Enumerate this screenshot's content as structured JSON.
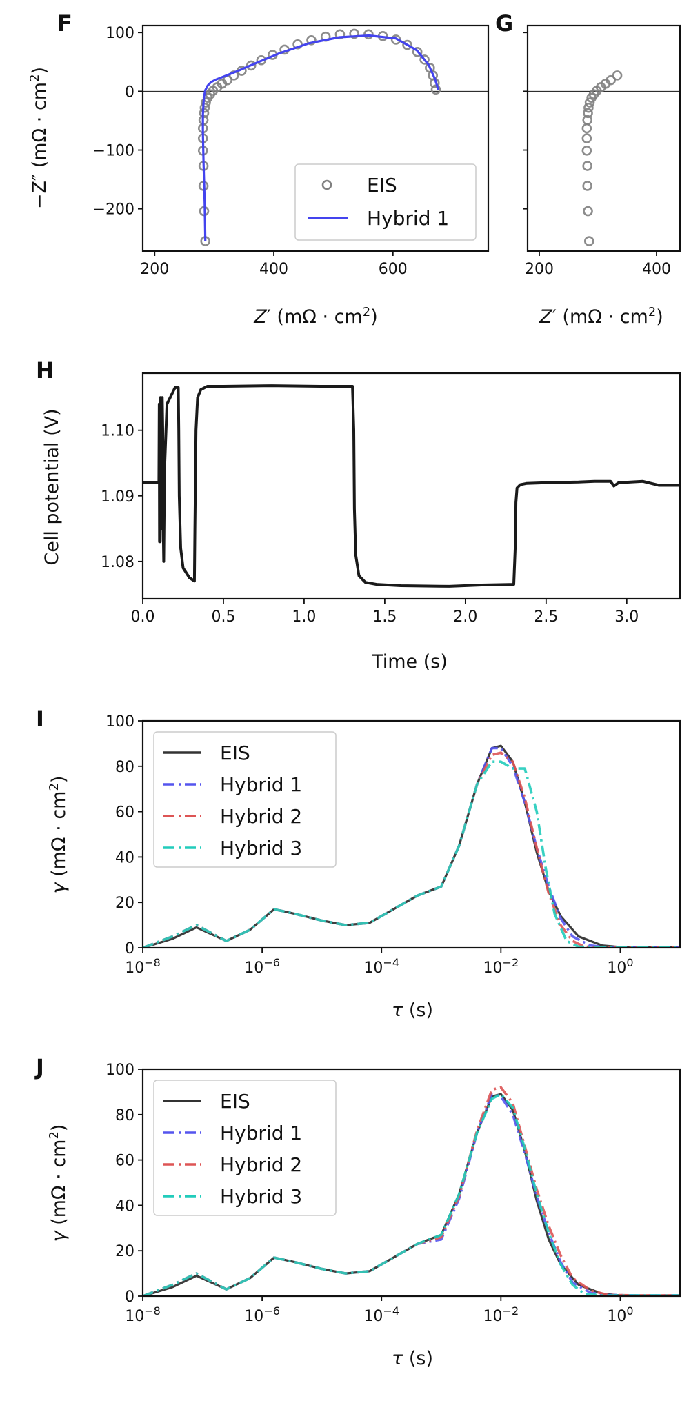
{
  "chart_data": [
    {
      "panel": "F",
      "type": "scatter",
      "xlabel_main": "Z",
      "xlabel_prime": "′",
      "xlabel_unit": " (mΩ · cm",
      "xlabel_sup": "2",
      "xlabel_close": ")",
      "ylabel_main": "−Z",
      "ylabel_prime": "″",
      "ylabel_unit": " (mΩ · cm",
      "ylabel_sup": "2",
      "ylabel_close": ")",
      "xlim": [
        180,
        760
      ],
      "ylim": [
        -272,
        112
      ],
      "xticks": [
        200,
        400,
        600
      ],
      "yticks": [
        100,
        0,
        -100,
        -200
      ],
      "legend": {
        "placement": "lower-right",
        "entries": [
          "EIS",
          "Hybrid 1"
        ]
      },
      "series": [
        {
          "name": "EIS",
          "marker": "open-circle",
          "color": "#808080",
          "x": [
            285,
            283,
            282,
            282,
            281,
            281,
            281,
            282,
            283,
            284,
            286,
            289,
            293,
            298,
            305,
            313,
            322,
            333,
            346,
            362,
            379,
            398,
            418,
            440,
            463,
            487,
            511,
            535,
            559,
            583,
            605,
            624,
            641,
            653,
            662,
            667,
            670,
            672
          ],
          "y": [
            -255,
            -204,
            -161,
            -127,
            -101,
            -80,
            -63,
            -49,
            -37,
            -28,
            -19,
            -11,
            -5,
            1,
            7,
            13,
            19,
            27,
            35,
            44,
            53,
            62,
            71,
            80,
            87,
            93,
            97,
            98,
            97,
            94,
            88,
            79,
            67,
            54,
            40,
            27,
            14,
            3
          ]
        },
        {
          "name": "Hybrid 1",
          "marker": "line",
          "color": "#4444ee",
          "x": [
            285,
            284,
            282,
            281,
            281,
            282,
            283,
            285,
            289,
            295,
            303,
            318,
            340,
            370,
            410,
            460,
            510,
            560,
            605,
            640,
            660,
            670,
            674,
            676
          ],
          "y": [
            -255,
            -190,
            -120,
            -70,
            -40,
            -20,
            -8,
            2,
            10,
            16,
            20,
            26,
            35,
            48,
            65,
            82,
            92,
            95,
            90,
            70,
            45,
            22,
            10,
            2
          ]
        }
      ]
    },
    {
      "panel": "G",
      "type": "scatter",
      "xlabel_main": "Z",
      "xlabel_prime": "′",
      "xlabel_unit": " (mΩ · cm",
      "xlabel_sup": "2",
      "xlabel_close": ")",
      "xlim": [
        180,
        440
      ],
      "ylim": [
        -272,
        112
      ],
      "xticks": [
        200,
        400
      ],
      "series": [
        {
          "name": "EIS",
          "marker": "open-circle",
          "color": "#808080",
          "x": [
            285,
            283,
            282,
            282,
            281,
            281,
            281,
            282,
            283,
            284,
            286,
            289,
            293,
            298,
            305,
            313,
            322,
            333
          ],
          "y": [
            -255,
            -204,
            -161,
            -127,
            -101,
            -80,
            -63,
            -49,
            -37,
            -28,
            -19,
            -11,
            -5,
            1,
            7,
            13,
            19,
            27
          ]
        }
      ]
    },
    {
      "panel": "H",
      "type": "line",
      "xlabel": "Time (s)",
      "ylabel": "Cell potential (V)",
      "xlim": [
        0.0,
        3.33
      ],
      "ylim": [
        1.0743,
        1.1087
      ],
      "xticks": [
        0.0,
        0.5,
        1.0,
        1.5,
        2.0,
        2.5,
        3.0
      ],
      "xticklabels": [
        "0.0",
        "0.5",
        "1.0",
        "1.5",
        "2.0",
        "2.5",
        "3.0"
      ],
      "yticks": [
        1.08,
        1.09,
        1.1
      ],
      "yticklabels": [
        "1.08",
        "1.09",
        "1.10"
      ],
      "series": [
        {
          "name": "Cell potential",
          "color": "#1a1a1a",
          "x": [
            0.0,
            0.095,
            0.1,
            0.102,
            0.104,
            0.108,
            0.108,
            0.11,
            0.112,
            0.114,
            0.116,
            0.119,
            0.121,
            0.124,
            0.127,
            0.13,
            0.135,
            0.15,
            0.2,
            0.22,
            0.223,
            0.226,
            0.235,
            0.25,
            0.29,
            0.32,
            0.323,
            0.33,
            0.34,
            0.36,
            0.4,
            0.5,
            0.8,
            1.1,
            1.3,
            1.308,
            1.312,
            1.32,
            1.34,
            1.38,
            1.45,
            1.6,
            1.9,
            2.1,
            2.3,
            2.31,
            2.313,
            2.32,
            2.34,
            2.38,
            2.5,
            2.7,
            2.8,
            2.9,
            2.92,
            2.95,
            3.1,
            3.2,
            3.33
          ],
          "y": [
            1.092,
            1.092,
            1.092,
            1.104,
            1.083,
            1.083,
            1.103,
            1.105,
            1.104,
            1.087,
            1.085,
            1.104,
            1.105,
            1.1,
            1.085,
            1.08,
            1.094,
            1.104,
            1.1065,
            1.1065,
            1.1,
            1.09,
            1.082,
            1.079,
            1.0775,
            1.077,
            1.085,
            1.1,
            1.105,
            1.1062,
            1.1067,
            1.1067,
            1.1068,
            1.1067,
            1.1067,
            1.1,
            1.088,
            1.081,
            1.0778,
            1.0768,
            1.0765,
            1.0763,
            1.0762,
            1.0764,
            1.0765,
            1.083,
            1.089,
            1.0912,
            1.0917,
            1.0919,
            1.092,
            1.0921,
            1.0922,
            1.0922,
            1.0915,
            1.092,
            1.0922,
            1.0916,
            1.0916
          ]
        }
      ]
    },
    {
      "panel": "I",
      "type": "line",
      "xlabel_sym": "τ",
      "xlabel_unit": " (s)",
      "ylabel_sym": "γ",
      "ylabel_unit": " (mΩ · cm",
      "ylabel_sup": "2",
      "ylabel_close": ")",
      "xscale": "log",
      "xlim_log10": [
        -8,
        1
      ],
      "ylim": [
        0,
        100
      ],
      "xtick_exponents": [
        "−8",
        "−6",
        "−4",
        "−2",
        "0"
      ],
      "xtick_log10": [
        -8,
        -6,
        -4,
        -2,
        0
      ],
      "yticks": [
        0,
        20,
        40,
        60,
        80,
        100
      ],
      "legend": {
        "placement": "upper-left",
        "entries": [
          "EIS",
          "Hybrid 1",
          "Hybrid 2",
          "Hybrid 3"
        ]
      },
      "series": [
        {
          "name": "EIS",
          "color": "#333333",
          "style": "solid",
          "log10_tau": [
            -8,
            -7.5,
            -7.1,
            -6.6,
            -6.2,
            -5.8,
            -5.45,
            -5,
            -4.6,
            -4.2,
            -3.8,
            -3.4,
            -3,
            -2.7,
            -2.4,
            -2.15,
            -2,
            -1.8,
            -1.6,
            -1.4,
            -1.2,
            -1,
            -0.7,
            -0.3,
            0,
            1
          ],
          "gamma": [
            0,
            4,
            9,
            3,
            8,
            17,
            15,
            12,
            10,
            11,
            17,
            23,
            27,
            45,
            72,
            88,
            89,
            82,
            64,
            42,
            25,
            14,
            5,
            1,
            0.3,
            0.3
          ]
        },
        {
          "name": "Hybrid 1",
          "color": "#5555ee",
          "style": "dash-dot",
          "log10_tau": [
            -8,
            -7.5,
            -7.1,
            -6.6,
            -6.2,
            -5.8,
            -5.45,
            -5,
            -4.6,
            -4.2,
            -3.8,
            -3.4,
            -3,
            -2.7,
            -2.4,
            -2.15,
            -2,
            -1.8,
            -1.6,
            -1.4,
            -1.2,
            -1,
            -0.8,
            -0.5,
            -0.2,
            0.3,
            1
          ],
          "gamma": [
            0,
            5,
            10,
            3,
            8,
            17,
            15,
            12,
            10,
            11,
            17,
            23,
            27,
            45,
            72,
            88,
            88,
            80,
            64,
            44,
            27,
            13,
            5,
            1,
            0.2,
            0.2,
            0.2
          ]
        },
        {
          "name": "Hybrid 2",
          "color": "#dd5555",
          "style": "dash-dot",
          "log10_tau": [
            -8,
            -7.5,
            -7.1,
            -6.6,
            -6.2,
            -5.8,
            -5.45,
            -5,
            -4.6,
            -4.2,
            -3.8,
            -3.4,
            -3,
            -2.7,
            -2.4,
            -2.15,
            -2,
            -1.8,
            -1.6,
            -1.4,
            -1.2,
            -1,
            -0.8,
            -0.6,
            -0.3,
            0.3,
            1
          ],
          "gamma": [
            0,
            5,
            10,
            3,
            8,
            17,
            15,
            12,
            10,
            11,
            17,
            23,
            27,
            45,
            72,
            85,
            86,
            82,
            66,
            44,
            24,
            10,
            3,
            0.5,
            0.2,
            0.2,
            0.2
          ]
        },
        {
          "name": "Hybrid 3",
          "color": "#22ccbb",
          "style": "dash-dot",
          "log10_tau": [
            -8,
            -7.5,
            -7.1,
            -6.6,
            -6.2,
            -5.8,
            -5.45,
            -5,
            -4.6,
            -4.2,
            -3.8,
            -3.4,
            -3,
            -2.7,
            -2.4,
            -2.15,
            -2,
            -1.8,
            -1.6,
            -1.4,
            -1.25,
            -1.1,
            -0.9,
            -0.7,
            -0.4,
            0.3,
            1
          ],
          "gamma": [
            0,
            5,
            10,
            3,
            8,
            17,
            15,
            12,
            10,
            11,
            17,
            23,
            27,
            45,
            72,
            82,
            82,
            79,
            79,
            60,
            35,
            15,
            3,
            0.5,
            0.2,
            0.2,
            0.2
          ]
        }
      ]
    },
    {
      "panel": "J",
      "type": "line",
      "xlabel_sym": "τ",
      "xlabel_unit": " (s)",
      "ylabel_sym": "γ",
      "ylabel_unit": " (mΩ · cm",
      "ylabel_sup": "2",
      "ylabel_close": ")",
      "xscale": "log",
      "xlim_log10": [
        -8,
        1
      ],
      "ylim": [
        0,
        100
      ],
      "xtick_exponents": [
        "−8",
        "−6",
        "−4",
        "−2",
        "0"
      ],
      "xtick_log10": [
        -8,
        -6,
        -4,
        -2,
        0
      ],
      "yticks": [
        0,
        20,
        40,
        60,
        80,
        100
      ],
      "legend": {
        "placement": "upper-left",
        "entries": [
          "EIS",
          "Hybrid 1",
          "Hybrid 2",
          "Hybrid 3"
        ]
      },
      "series": [
        {
          "name": "EIS",
          "color": "#333333",
          "style": "solid",
          "log10_tau": [
            -8,
            -7.5,
            -7.1,
            -6.6,
            -6.2,
            -5.8,
            -5.45,
            -5,
            -4.6,
            -4.2,
            -3.8,
            -3.4,
            -3,
            -2.7,
            -2.4,
            -2.15,
            -2,
            -1.8,
            -1.6,
            -1.4,
            -1.2,
            -1,
            -0.7,
            -0.3,
            0,
            1
          ],
          "gamma": [
            0,
            4,
            9,
            3,
            8,
            17,
            15,
            12,
            10,
            11,
            17,
            23,
            27,
            45,
            72,
            88,
            89,
            82,
            64,
            42,
            25,
            14,
            5,
            1,
            0.3,
            0.3
          ]
        },
        {
          "name": "Hybrid 1",
          "color": "#5555ee",
          "style": "dash-dot",
          "log10_tau": [
            -8,
            -7.5,
            -7.1,
            -6.6,
            -6.2,
            -5.8,
            -5.45,
            -5,
            -4.6,
            -4.2,
            -3.8,
            -3.4,
            -3,
            -2.7,
            -2.4,
            -2.15,
            -2,
            -1.8,
            -1.6,
            -1.4,
            -1.2,
            -1,
            -0.8,
            -0.5,
            -0.2,
            0.3,
            1
          ],
          "gamma": [
            0,
            5,
            10,
            3,
            8,
            17,
            15,
            12,
            10,
            11,
            17,
            23,
            25,
            43,
            72,
            89,
            88,
            80,
            63,
            44,
            28,
            15,
            6,
            1.5,
            0.5,
            0.3,
            0.3
          ]
        },
        {
          "name": "Hybrid 2",
          "color": "#dd5555",
          "style": "dash-dot",
          "log10_tau": [
            -8,
            -7.5,
            -7.1,
            -6.6,
            -6.2,
            -5.8,
            -5.45,
            -5,
            -4.6,
            -4.2,
            -3.8,
            -3.4,
            -3,
            -2.7,
            -2.4,
            -2.15,
            -2,
            -1.8,
            -1.6,
            -1.4,
            -1.2,
            -1,
            -0.8,
            -0.5,
            -0.2,
            0.3,
            1
          ],
          "gamma": [
            0,
            5,
            10,
            3,
            8,
            17,
            15,
            12,
            10,
            11,
            17,
            23,
            26,
            44,
            73,
            91,
            92,
            85,
            66,
            47,
            31,
            18,
            8,
            2.5,
            0.5,
            0.3,
            0.3
          ]
        },
        {
          "name": "Hybrid 3",
          "color": "#22ccbb",
          "style": "dash-dot",
          "log10_tau": [
            -8,
            -7.5,
            -7.1,
            -6.6,
            -6.2,
            -5.8,
            -5.45,
            -5,
            -4.6,
            -4.2,
            -3.8,
            -3.4,
            -3,
            -2.7,
            -2.4,
            -2.15,
            -2,
            -1.8,
            -1.6,
            -1.4,
            -1.2,
            -1,
            -0.8,
            -0.6,
            -0.3,
            0.3,
            1
          ],
          "gamma": [
            0,
            5,
            10,
            3,
            8,
            17,
            15,
            12,
            10,
            11,
            17,
            23,
            27,
            45,
            72,
            87,
            89,
            83,
            65,
            45,
            28,
            14,
            5,
            1,
            0.3,
            0.3,
            0.3
          ]
        }
      ]
    }
  ]
}
